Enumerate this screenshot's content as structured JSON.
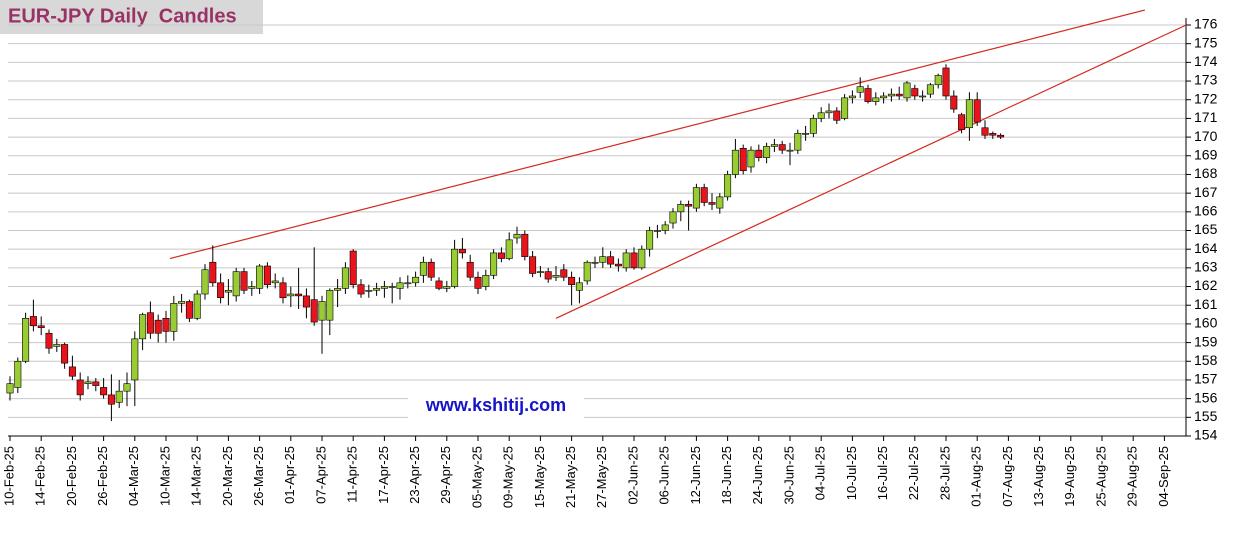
{
  "chart_data": {
    "type": "candlestick",
    "title": "EUR-JPY Daily  Candles",
    "website": "www.kshitij.com",
    "up_color": "#99cc33",
    "down_color": "#e8141c",
    "grid": true,
    "ylim": [
      154,
      176
    ],
    "yticks": [
      154,
      155,
      156,
      157,
      158,
      159,
      160,
      161,
      162,
      163,
      164,
      165,
      166,
      167,
      168,
      169,
      170,
      171,
      172,
      173,
      174,
      175,
      176
    ],
    "categories": [
      "10-Feb-25",
      null,
      null,
      null,
      "14-Feb-25",
      null,
      null,
      null,
      "20-Feb-25",
      null,
      null,
      null,
      "26-Feb-25",
      null,
      null,
      null,
      "04-Mar-25",
      null,
      null,
      null,
      "10-Mar-25",
      null,
      null,
      null,
      "14-Mar-25",
      null,
      null,
      null,
      "20-Mar-25",
      null,
      null,
      null,
      "26-Mar-25",
      null,
      null,
      null,
      "01-Apr-25",
      null,
      null,
      null,
      "07-Apr-25",
      null,
      null,
      null,
      "11-Apr-25",
      null,
      null,
      null,
      "17-Apr-25",
      null,
      null,
      null,
      "23-Apr-25",
      null,
      null,
      null,
      "29-Apr-25",
      null,
      null,
      null,
      "05-May-25",
      null,
      null,
      null,
      "09-May-25",
      null,
      null,
      null,
      "15-May-25",
      null,
      null,
      null,
      "21-May-25",
      null,
      null,
      null,
      "27-May-25",
      null,
      null,
      null,
      "02-Jun-25",
      null,
      null,
      null,
      "06-Jun-25",
      null,
      null,
      null,
      "12-Jun-25",
      null,
      null,
      null,
      "18-Jun-25",
      null,
      null,
      null,
      "24-Jun-25",
      null,
      null,
      null,
      "30-Jun-25",
      null,
      null,
      null,
      "04-Jul-25",
      null,
      null,
      null,
      "10-Jul-25",
      null,
      null,
      null,
      "16-Jul-25",
      null,
      null,
      null,
      "22-Jul-25",
      null,
      null,
      null,
      "28-Jul-25",
      null,
      null,
      null,
      "01-Aug-25",
      null,
      null,
      null,
      "07-Aug-25",
      null,
      null,
      null,
      "13-Aug-25",
      null,
      null,
      null,
      "19-Aug-25",
      null,
      null,
      null,
      "25-Aug-25",
      null,
      null,
      null,
      "29-Aug-25",
      null,
      null,
      null,
      "04-Sep-25"
    ],
    "ohlc": [
      [
        156.3,
        157.2,
        155.9,
        156.8
      ],
      [
        156.6,
        158.2,
        156.3,
        158.0
      ],
      [
        158.0,
        160.6,
        157.9,
        160.3
      ],
      [
        160.4,
        161.3,
        159.6,
        159.9
      ],
      [
        159.9,
        160.4,
        159.4,
        159.8
      ],
      [
        159.5,
        159.7,
        158.4,
        158.7
      ],
      [
        158.8,
        159.2,
        158.5,
        158.9
      ],
      [
        158.9,
        159.0,
        157.6,
        157.9
      ],
      [
        157.7,
        158.3,
        157.0,
        157.2
      ],
      [
        157.0,
        157.4,
        155.9,
        156.2
      ],
      [
        156.8,
        157.2,
        156.5,
        156.9
      ],
      [
        156.9,
        157.1,
        156.4,
        156.7
      ],
      [
        156.6,
        157.1,
        156.0,
        156.2
      ],
      [
        156.2,
        157.3,
        154.8,
        155.7
      ],
      [
        155.8,
        157.0,
        155.5,
        156.4
      ],
      [
        156.4,
        157.4,
        155.6,
        156.8
      ],
      [
        157.0,
        159.6,
        155.6,
        159.2
      ],
      [
        159.2,
        160.6,
        158.6,
        160.5
      ],
      [
        160.6,
        161.2,
        159.2,
        159.5
      ],
      [
        160.2,
        160.5,
        159.0,
        159.5
      ],
      [
        160.3,
        160.7,
        159.0,
        159.6
      ],
      [
        159.6,
        161.5,
        159.1,
        161.1
      ],
      [
        161.1,
        161.6,
        160.6,
        161.2
      ],
      [
        161.2,
        161.3,
        160.1,
        160.3
      ],
      [
        160.3,
        161.8,
        160.2,
        161.6
      ],
      [
        161.6,
        163.2,
        161.3,
        162.9
      ],
      [
        163.3,
        164.2,
        162.0,
        162.2
      ],
      [
        162.2,
        162.7,
        161.1,
        161.4
      ],
      [
        161.7,
        162.4,
        161.0,
        161.8
      ],
      [
        161.5,
        163.0,
        161.2,
        162.8
      ],
      [
        162.8,
        163.0,
        161.6,
        161.8
      ],
      [
        161.9,
        162.3,
        161.5,
        162.0
      ],
      [
        161.9,
        163.2,
        161.6,
        163.1
      ],
      [
        163.1,
        163.3,
        161.9,
        162.1
      ],
      [
        162.2,
        162.7,
        161.9,
        162.3
      ],
      [
        162.2,
        162.5,
        161.1,
        161.4
      ],
      [
        161.5,
        162.0,
        160.9,
        161.6
      ],
      [
        161.6,
        163.0,
        160.8,
        161.5
      ],
      [
        161.5,
        161.9,
        160.3,
        160.9
      ],
      [
        161.3,
        164.1,
        159.9,
        160.1
      ],
      [
        160.2,
        161.5,
        158.4,
        161.2
      ],
      [
        160.2,
        161.9,
        159.4,
        161.8
      ],
      [
        161.8,
        162.4,
        160.9,
        161.9
      ],
      [
        161.9,
        163.3,
        161.6,
        163.0
      ],
      [
        163.9,
        164.0,
        161.9,
        162.1
      ],
      [
        162.1,
        162.4,
        161.4,
        161.6
      ],
      [
        161.8,
        162.1,
        161.4,
        161.8
      ],
      [
        161.8,
        162.2,
        161.5,
        161.9
      ],
      [
        161.9,
        162.3,
        161.4,
        162.0
      ],
      [
        162.0,
        162.2,
        161.1,
        162.0
      ],
      [
        161.9,
        162.5,
        161.3,
        162.2
      ],
      [
        162.2,
        162.6,
        161.9,
        162.2
      ],
      [
        162.2,
        162.8,
        162.0,
        162.5
      ],
      [
        162.6,
        163.6,
        162.2,
        163.3
      ],
      [
        163.3,
        163.5,
        162.3,
        162.5
      ],
      [
        162.3,
        162.5,
        161.8,
        161.9
      ],
      [
        161.9,
        162.3,
        161.7,
        162.0
      ],
      [
        162.0,
        164.5,
        161.9,
        164.0
      ],
      [
        164.0,
        164.6,
        163.5,
        163.8
      ],
      [
        163.3,
        163.7,
        162.3,
        162.5
      ],
      [
        162.5,
        162.8,
        161.6,
        161.9
      ],
      [
        162.0,
        162.9,
        161.8,
        162.6
      ],
      [
        162.6,
        164.0,
        162.4,
        163.8
      ],
      [
        163.8,
        164.1,
        163.3,
        163.5
      ],
      [
        163.5,
        164.9,
        163.4,
        164.5
      ],
      [
        164.6,
        165.2,
        164.3,
        164.8
      ],
      [
        164.8,
        165.0,
        163.4,
        163.6
      ],
      [
        163.6,
        163.9,
        162.5,
        162.7
      ],
      [
        162.8,
        163.1,
        162.5,
        162.8
      ],
      [
        162.8,
        163.0,
        162.2,
        162.4
      ],
      [
        162.5,
        163.1,
        162.3,
        162.6
      ],
      [
        162.9,
        163.2,
        162.3,
        162.5
      ],
      [
        162.5,
        162.8,
        161.0,
        162.1
      ],
      [
        161.8,
        162.5,
        161.1,
        162.2
      ],
      [
        162.3,
        163.4,
        162.1,
        163.3
      ],
      [
        163.3,
        163.6,
        163.0,
        163.3
      ],
      [
        163.3,
        164.1,
        163.0,
        163.6
      ],
      [
        163.6,
        163.9,
        163.0,
        163.2
      ],
      [
        163.2,
        163.5,
        162.8,
        163.1
      ],
      [
        163.0,
        164.0,
        162.8,
        163.8
      ],
      [
        163.8,
        164.1,
        162.9,
        163.0
      ],
      [
        163.0,
        164.2,
        162.9,
        164.0
      ],
      [
        164.0,
        165.2,
        163.6,
        165.0
      ],
      [
        165.0,
        165.3,
        164.6,
        165.0
      ],
      [
        165.0,
        165.5,
        164.8,
        165.3
      ],
      [
        165.4,
        166.2,
        165.1,
        166.0
      ],
      [
        166.0,
        166.6,
        165.5,
        166.4
      ],
      [
        166.4,
        166.6,
        165.0,
        166.3
      ],
      [
        166.2,
        167.5,
        166.0,
        167.3
      ],
      [
        167.3,
        167.5,
        166.3,
        166.5
      ],
      [
        166.5,
        167.0,
        166.1,
        166.4
      ],
      [
        166.2,
        167.0,
        165.9,
        166.8
      ],
      [
        166.8,
        168.2,
        166.6,
        168.0
      ],
      [
        168.0,
        169.9,
        167.8,
        169.3
      ],
      [
        169.4,
        169.6,
        168.0,
        168.2
      ],
      [
        168.4,
        169.5,
        168.1,
        169.3
      ],
      [
        169.3,
        169.6,
        168.7,
        168.9
      ],
      [
        168.9,
        169.7,
        168.6,
        169.5
      ],
      [
        169.5,
        169.9,
        169.2,
        169.6
      ],
      [
        169.6,
        169.8,
        169.1,
        169.3
      ],
      [
        169.3,
        169.7,
        168.5,
        169.3
      ],
      [
        169.3,
        170.4,
        169.1,
        170.2
      ],
      [
        170.2,
        170.6,
        169.8,
        170.2
      ],
      [
        170.2,
        171.2,
        170.0,
        171.0
      ],
      [
        171.0,
        171.6,
        170.8,
        171.3
      ],
      [
        171.3,
        171.8,
        171.0,
        171.4
      ],
      [
        171.4,
        171.6,
        170.7,
        170.9
      ],
      [
        171.0,
        172.3,
        170.9,
        172.1
      ],
      [
        172.1,
        172.5,
        171.8,
        172.2
      ],
      [
        172.4,
        173.2,
        172.1,
        172.7
      ],
      [
        172.6,
        172.8,
        171.8,
        171.9
      ],
      [
        171.9,
        172.4,
        171.7,
        172.1
      ],
      [
        172.1,
        172.4,
        171.8,
        172.2
      ],
      [
        172.2,
        172.6,
        171.9,
        172.3
      ],
      [
        172.3,
        172.7,
        172.0,
        172.2
      ],
      [
        172.1,
        173.0,
        171.9,
        172.9
      ],
      [
        172.6,
        172.8,
        172.0,
        172.2
      ],
      [
        172.2,
        172.5,
        171.9,
        172.2
      ],
      [
        172.3,
        172.9,
        172.1,
        172.8
      ],
      [
        172.8,
        173.4,
        172.6,
        173.3
      ],
      [
        173.7,
        173.9,
        172.0,
        172.2
      ],
      [
        172.2,
        172.5,
        171.3,
        171.5
      ],
      [
        171.2,
        171.3,
        170.2,
        170.4
      ],
      [
        170.5,
        172.4,
        169.8,
        172.0
      ],
      [
        172.0,
        172.4,
        170.6,
        170.8
      ],
      [
        170.5,
        170.9,
        169.9,
        170.1
      ],
      [
        170.2,
        170.3,
        169.9,
        170.1
      ],
      [
        170.1,
        170.2,
        169.9,
        170.0
      ],
      null,
      null,
      null,
      null,
      null,
      null,
      null,
      null,
      null,
      null,
      null,
      null,
      null,
      null,
      null,
      null,
      null,
      null,
      null,
      null,
      null
    ],
    "trendlines": [
      {
        "color": "#d42a1e",
        "x": [
          20.5,
          145.5
        ],
        "y": [
          163.5,
          176.8
        ]
      },
      {
        "color": "#d42a1e",
        "x": [
          70,
          150.8
        ],
        "y": [
          160.3,
          176
        ]
      }
    ]
  }
}
